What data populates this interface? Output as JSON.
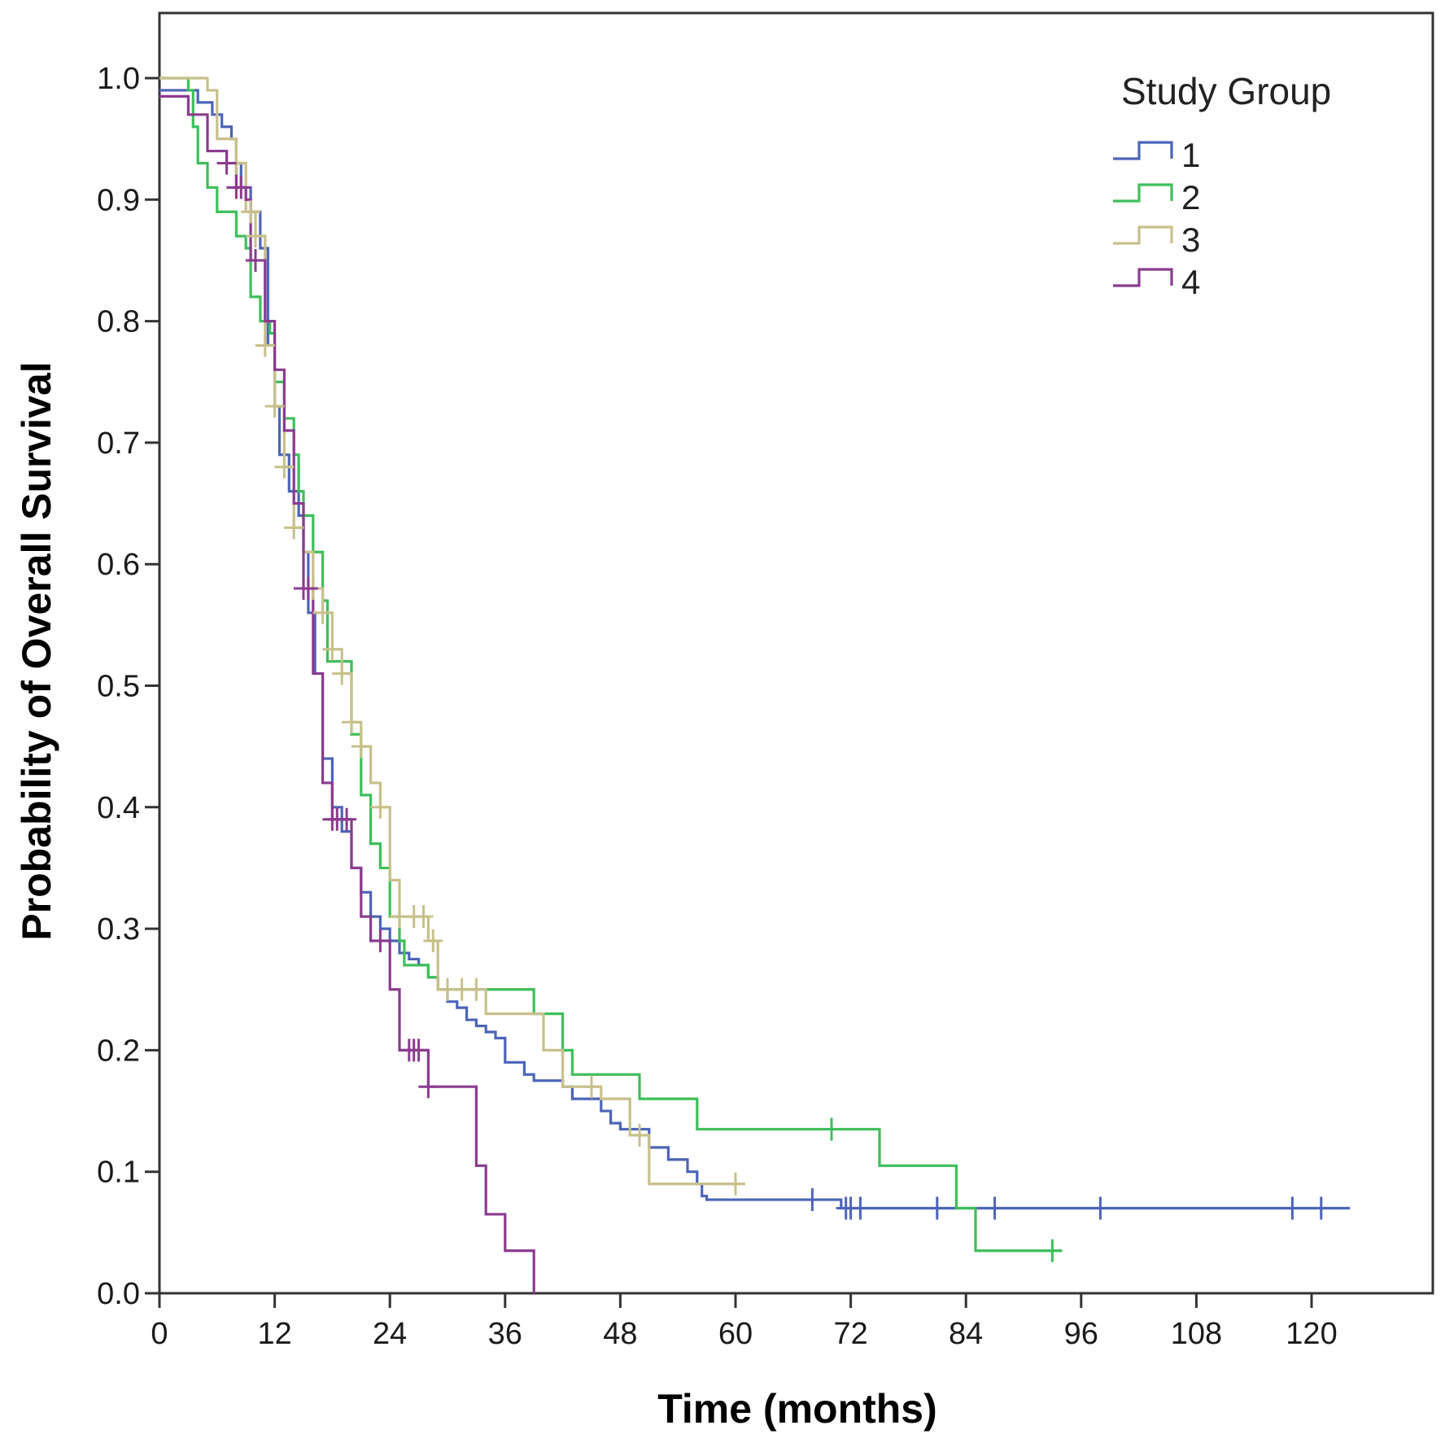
{
  "chart_data": {
    "type": "line",
    "subtype": "kaplan-meier step curve",
    "title": "",
    "xlabel": "Time (months)",
    "ylabel": "Probability of Overall Survival",
    "xlim": [
      0,
      132
    ],
    "ylim": [
      0,
      1.0
    ],
    "xticks": [
      0,
      12,
      24,
      36,
      48,
      60,
      72,
      84,
      96,
      108,
      120
    ],
    "xtick_labels": [
      "0",
      "12",
      "24",
      "36",
      "48",
      "60",
      "72",
      "84",
      "96",
      "108",
      "120"
    ],
    "yticks": [
      0,
      0.1,
      0.2,
      0.3,
      0.4,
      0.5,
      0.6,
      0.7,
      0.8,
      0.9,
      1.0
    ],
    "ytick_labels": [
      "0.0",
      "0.1",
      "0.2",
      "0.3",
      "0.4",
      "0.5",
      "0.6",
      "0.7",
      "0.8",
      "0.9",
      "1.0"
    ],
    "grid": false,
    "legend": {
      "title": "Study Group",
      "position": "top-right",
      "entries": [
        "1",
        "2",
        "3",
        "4"
      ]
    },
    "series": [
      {
        "name": "1",
        "color": "#4c64b8",
        "steps": [
          [
            0,
            0.99
          ],
          [
            4,
            0.98
          ],
          [
            5.5,
            0.97
          ],
          [
            6.5,
            0.96
          ],
          [
            7.5,
            0.95
          ],
          [
            8,
            0.93
          ],
          [
            8.5,
            0.91
          ],
          [
            9.5,
            0.89
          ],
          [
            10.5,
            0.86
          ],
          [
            11.3,
            0.78
          ],
          [
            12,
            0.73
          ],
          [
            12.5,
            0.69
          ],
          [
            13.5,
            0.66
          ],
          [
            14.5,
            0.64
          ],
          [
            15,
            0.61
          ],
          [
            15.5,
            0.56
          ],
          [
            16.2,
            0.51
          ],
          [
            17,
            0.44
          ],
          [
            18,
            0.4
          ],
          [
            19,
            0.38
          ],
          [
            20,
            0.35
          ],
          [
            21,
            0.33
          ],
          [
            22,
            0.31
          ],
          [
            23,
            0.3
          ],
          [
            24,
            0.29
          ],
          [
            25,
            0.28
          ],
          [
            26,
            0.275
          ],
          [
            27,
            0.27
          ],
          [
            28,
            0.26
          ],
          [
            29,
            0.25
          ],
          [
            30,
            0.24
          ],
          [
            31,
            0.235
          ],
          [
            32,
            0.225
          ],
          [
            33,
            0.22
          ],
          [
            34,
            0.215
          ],
          [
            35,
            0.21
          ],
          [
            36,
            0.19
          ],
          [
            38,
            0.18
          ],
          [
            39,
            0.175
          ],
          [
            42,
            0.17
          ],
          [
            43,
            0.16
          ],
          [
            46,
            0.15
          ],
          [
            47,
            0.14
          ],
          [
            48,
            0.135
          ],
          [
            51,
            0.12
          ],
          [
            53,
            0.11
          ],
          [
            55,
            0.1
          ],
          [
            56,
            0.09
          ],
          [
            56.5,
            0.08
          ],
          [
            57,
            0.077
          ],
          [
            71,
            0.07
          ],
          [
            124,
            0.07
          ]
        ],
        "censor_times": [
          68,
          71.5,
          72,
          73,
          81,
          87,
          98,
          118,
          121
        ]
      },
      {
        "name": "2",
        "color": "#3dbf5a",
        "steps": [
          [
            0,
            1.0
          ],
          [
            3,
            0.99
          ],
          [
            3.5,
            0.96
          ],
          [
            4,
            0.93
          ],
          [
            5,
            0.91
          ],
          [
            6,
            0.89
          ],
          [
            8,
            0.87
          ],
          [
            9,
            0.86
          ],
          [
            9.5,
            0.82
          ],
          [
            10.5,
            0.8
          ],
          [
            11.5,
            0.79
          ],
          [
            12,
            0.75
          ],
          [
            13,
            0.72
          ],
          [
            14,
            0.69
          ],
          [
            14.5,
            0.66
          ],
          [
            15,
            0.64
          ],
          [
            16,
            0.61
          ],
          [
            17,
            0.57
          ],
          [
            17.5,
            0.52
          ],
          [
            20,
            0.46
          ],
          [
            21,
            0.41
          ],
          [
            22,
            0.37
          ],
          [
            23,
            0.35
          ],
          [
            24,
            0.31
          ],
          [
            25,
            0.29
          ],
          [
            25.5,
            0.27
          ],
          [
            28,
            0.26
          ],
          [
            29,
            0.25
          ],
          [
            39,
            0.23
          ],
          [
            42,
            0.2
          ],
          [
            43,
            0.18
          ],
          [
            50,
            0.16
          ],
          [
            56,
            0.135
          ],
          [
            75,
            0.105
          ],
          [
            83,
            0.07
          ],
          [
            85,
            0.035
          ],
          [
            94,
            0.035
          ]
        ],
        "censor_times": [
          70,
          93
        ]
      },
      {
        "name": "3",
        "color": "#c8c08a",
        "steps": [
          [
            0,
            1.0
          ],
          [
            5,
            0.99
          ],
          [
            6,
            0.95
          ],
          [
            8,
            0.93
          ],
          [
            9,
            0.89
          ],
          [
            10,
            0.87
          ],
          [
            11,
            0.78
          ],
          [
            12,
            0.73
          ],
          [
            13,
            0.68
          ],
          [
            14,
            0.63
          ],
          [
            15,
            0.61
          ],
          [
            16,
            0.58
          ],
          [
            17,
            0.56
          ],
          [
            18,
            0.53
          ],
          [
            19,
            0.51
          ],
          [
            20,
            0.47
          ],
          [
            21,
            0.45
          ],
          [
            22,
            0.42
          ],
          [
            23,
            0.4
          ],
          [
            24,
            0.34
          ],
          [
            25,
            0.31
          ],
          [
            28,
            0.29
          ],
          [
            29,
            0.25
          ],
          [
            34,
            0.23
          ],
          [
            40,
            0.2
          ],
          [
            42,
            0.17
          ],
          [
            46,
            0.16
          ],
          [
            49,
            0.13
          ],
          [
            51,
            0.09
          ],
          [
            61,
            0.09
          ]
        ],
        "censor_times": [
          8,
          9.5,
          10,
          11,
          12,
          13,
          14,
          16,
          17,
          18,
          19,
          20,
          21,
          23,
          25,
          26.5,
          27.5,
          28.5,
          30,
          31.5,
          33,
          45,
          50,
          60
        ]
      },
      {
        "name": "4",
        "color": "#8b3b8f",
        "steps": [
          [
            0,
            0.985
          ],
          [
            3,
            0.97
          ],
          [
            5,
            0.94
          ],
          [
            7,
            0.93
          ],
          [
            8,
            0.91
          ],
          [
            9,
            0.9
          ],
          [
            9.5,
            0.85
          ],
          [
            11,
            0.8
          ],
          [
            12,
            0.76
          ],
          [
            13,
            0.71
          ],
          [
            14,
            0.65
          ],
          [
            15,
            0.58
          ],
          [
            16,
            0.51
          ],
          [
            17,
            0.42
          ],
          [
            18,
            0.39
          ],
          [
            20,
            0.35
          ],
          [
            21,
            0.31
          ],
          [
            22,
            0.29
          ],
          [
            24,
            0.25
          ],
          [
            25,
            0.2
          ],
          [
            28,
            0.17
          ],
          [
            33,
            0.105
          ],
          [
            34,
            0.065
          ],
          [
            36,
            0.035
          ],
          [
            39,
            0.0
          ]
        ],
        "censor_times": [
          7,
          8,
          8.5,
          10,
          15,
          15.5,
          18,
          18.5,
          19.5,
          23,
          26,
          26.5,
          27,
          28
        ]
      }
    ]
  }
}
